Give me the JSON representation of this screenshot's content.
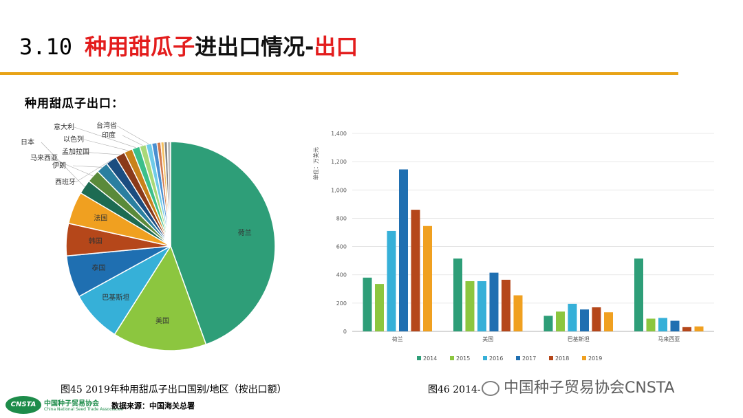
{
  "header": {
    "number": "3.10",
    "title_red_1": "种用甜瓜子",
    "title_black": "进出口情况-",
    "title_red_2": "出口"
  },
  "subtitle": "种用甜瓜子出口：",
  "captions": {
    "left": "图45   2019年种用甜瓜子出口国别/地区（按出口额）",
    "right": "图46   2014-"
  },
  "source": "数据来源：中国海关总署",
  "logo": {
    "mark": "CNSTA",
    "name": "中国种子贸易协会",
    "english": "China National Seed Trade Association"
  },
  "watermark": "中国种子贸易协会CNSTA",
  "chart_data": [
    {
      "type": "pie",
      "title": "",
      "slices": [
        {
          "label": "荷兰",
          "value": 44.5,
          "color": "#2e9e78"
        },
        {
          "label": "美国",
          "value": 14.5,
          "color": "#8cc63f"
        },
        {
          "label": "巴基斯坦",
          "value": 8.0,
          "color": "#36b0d8"
        },
        {
          "label": "泰国",
          "value": 6.5,
          "color": "#1f6fb1"
        },
        {
          "label": "韩国",
          "value": 5.0,
          "color": "#b5471a"
        },
        {
          "label": "法国",
          "value": 5.0,
          "color": "#f0a020"
        },
        {
          "label": "日本",
          "value": 2.2,
          "color": "#1d6b52"
        },
        {
          "label": "马来西亚",
          "value": 2.0,
          "color": "#5a8a3a"
        },
        {
          "label": "伊朗",
          "value": 1.8,
          "color": "#2a7fa0"
        },
        {
          "label": "西班牙",
          "value": 1.7,
          "color": "#1b4d80"
        },
        {
          "label": "孟加拉国",
          "value": 1.5,
          "color": "#8a3a1a"
        },
        {
          "label": "以色列",
          "value": 1.3,
          "color": "#c9821a"
        },
        {
          "label": "意大利",
          "value": 1.2,
          "color": "#3cbf8a"
        },
        {
          "label": "印度",
          "value": 1.0,
          "color": "#a8d878"
        },
        {
          "label": "台湾省",
          "value": 0.9,
          "color": "#6fcbe8"
        },
        {
          "label": "",
          "value": 0.8,
          "color": "#4a8fd0"
        },
        {
          "label": "",
          "value": 0.6,
          "color": "#d07a50"
        },
        {
          "label": "",
          "value": 0.5,
          "color": "#f5c060"
        },
        {
          "label": "",
          "value": 0.5,
          "color": "#888888"
        },
        {
          "label": "",
          "value": 0.5,
          "color": "#bbbbbb"
        }
      ]
    },
    {
      "type": "bar",
      "title": "",
      "ylabel": "单位：万美元",
      "ylim": [
        0,
        1400
      ],
      "yticks": [
        "0",
        "200",
        "400",
        "600",
        "800",
        "1,000",
        "1,200",
        "1,400"
      ],
      "categories": [
        "荷兰",
        "美国",
        "巴基斯坦",
        "马来西亚"
      ],
      "series": [
        {
          "name": "2014",
          "color": "#2e9e78",
          "values": [
            380,
            515,
            110,
            515
          ]
        },
        {
          "name": "2015",
          "color": "#8cc63f",
          "values": [
            335,
            355,
            140,
            90
          ]
        },
        {
          "name": "2016",
          "color": "#36b0d8",
          "values": [
            710,
            355,
            195,
            95
          ]
        },
        {
          "name": "2017",
          "color": "#1f6fb1",
          "values": [
            1145,
            415,
            155,
            75
          ]
        },
        {
          "name": "2018",
          "color": "#b5471a",
          "values": [
            860,
            365,
            170,
            30
          ]
        },
        {
          "name": "2019",
          "color": "#f0a020",
          "values": [
            745,
            255,
            135,
            35
          ]
        }
      ]
    }
  ]
}
